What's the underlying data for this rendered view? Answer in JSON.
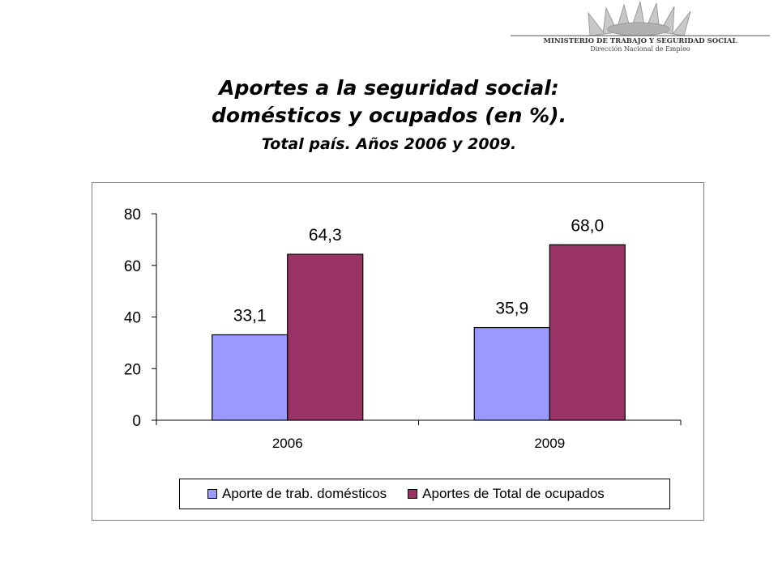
{
  "logo": {
    "line1": "MINISTERIO DE TRABAJO Y SEGURIDAD SOCIAL",
    "line2": "Dirección Nacional de Empleo"
  },
  "title_line1": "Aportes a la seguridad social:",
  "title_line2": "domésticos y ocupados (en %).",
  "subtitle": "Total país. Años 2006 y 2009.",
  "chart_data": {
    "type": "bar",
    "categories": [
      "2006",
      "2009"
    ],
    "series": [
      {
        "name": "Aporte de trab. domésticos",
        "values": [
          33.1,
          35.9
        ],
        "labels": [
          "33,1",
          "35,9"
        ],
        "color": "#9999ff"
      },
      {
        "name": "Aportes de Total de ocupados",
        "values": [
          64.3,
          68.0
        ],
        "labels": [
          "64,3",
          "68,0"
        ],
        "color": "#993366"
      }
    ],
    "ylim": [
      0,
      80
    ],
    "yticks": [
      0,
      20,
      40,
      60,
      80
    ],
    "ytick_labels": [
      "0",
      "20",
      "40",
      "60",
      "80"
    ],
    "grid": false,
    "legend_position": "bottom"
  }
}
